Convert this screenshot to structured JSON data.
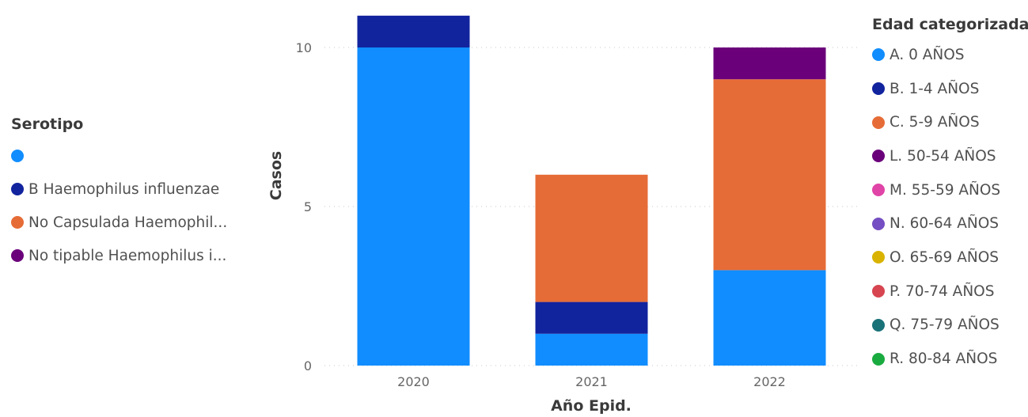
{
  "chart_data": {
    "type": "bar",
    "stacked": true,
    "xlabel": "Año Epid.",
    "ylabel": "Casos",
    "ylim": [
      0,
      11
    ],
    "yticks": [
      0,
      5,
      10
    ],
    "grid": true,
    "categories": [
      "2020",
      "2021",
      "2022"
    ],
    "series": [
      {
        "name": "A. 0 AÑOS",
        "color": "#118DFF",
        "values": [
          10,
          1,
          3
        ]
      },
      {
        "name": "B. 1-4 AÑOS",
        "color": "#12239E",
        "values": [
          1,
          1,
          0
        ]
      },
      {
        "name": "C. 5-9 AÑOS",
        "color": "#E66C37",
        "values": [
          0,
          4,
          6
        ]
      },
      {
        "name": "L. 50-54 AÑOS",
        "color": "#6B007B",
        "values": [
          0,
          0,
          1
        ]
      }
    ],
    "legend": {
      "title": "Edad categorizada",
      "placement": "right",
      "items": [
        {
          "label": "A. 0 AÑOS",
          "color": "#118DFF"
        },
        {
          "label": "B. 1-4 AÑOS",
          "color": "#12239E"
        },
        {
          "label": "C. 5-9 AÑOS",
          "color": "#E66C37"
        },
        {
          "label": "L. 50-54 AÑOS",
          "color": "#6B007B"
        },
        {
          "label": "M. 55-59 AÑOS",
          "color": "#E044A7"
        },
        {
          "label": "N. 60-64 AÑOS",
          "color": "#744EC2"
        },
        {
          "label": "O. 65-69 AÑOS",
          "color": "#D9B300"
        },
        {
          "label": "P. 70-74 AÑOS",
          "color": "#D64550"
        },
        {
          "label": "Q. 75-79 AÑOS",
          "color": "#197278"
        },
        {
          "label": "R. 80-84 AÑOS",
          "color": "#1AAB40"
        }
      ]
    },
    "secondary_legend": {
      "title": "Serotipo",
      "placement": "left",
      "items": [
        {
          "label": "",
          "color": "#118DFF"
        },
        {
          "label": "B Haemophilus influenzae",
          "color": "#12239E"
        },
        {
          "label": "No Capsulada Haemophil...",
          "color": "#E66C37"
        },
        {
          "label": "No tipable Haemophilus i...",
          "color": "#6B007B"
        }
      ]
    }
  }
}
